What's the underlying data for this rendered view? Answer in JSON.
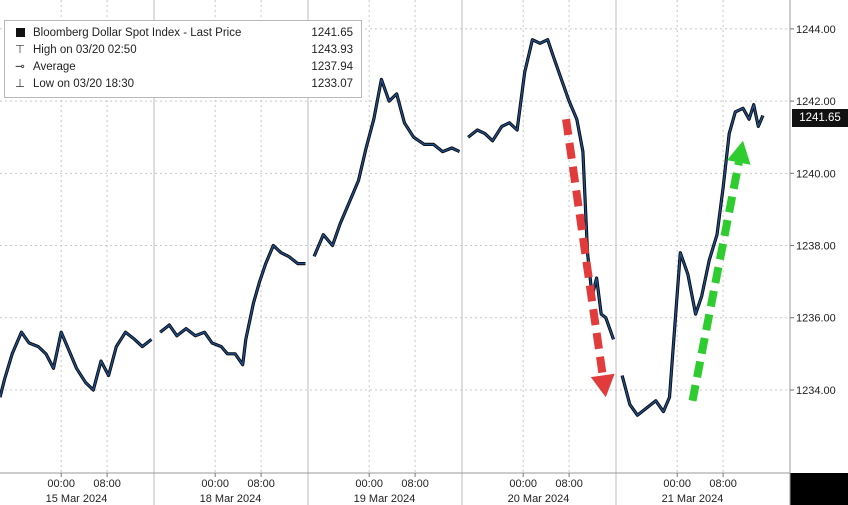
{
  "legend": {
    "title": "Bloomberg Dollar Spot Index - Last Price",
    "last_value": "1241.65",
    "high_label": "High on 03/20 02:50",
    "high_value": "1243.93",
    "avg_label": "Average",
    "avg_value": "1237.94",
    "low_label": "Low on 03/20 18:30",
    "low_value": "1233.07"
  },
  "last_price_badge": "1241.65",
  "colors": {
    "line": "#1f4e8c",
    "line_outline": "#0a0a0a",
    "panel_bg": "#ffffff",
    "red_arrow": "#e23b3b",
    "green_arrow": "#2ecc2e"
  },
  "chart_data": {
    "type": "line",
    "title": "Bloomberg Dollar Spot Index - Last Price",
    "ylim": [
      1231.7,
      1244.8
    ],
    "y_ticks": [
      "1244.00",
      "1242.00",
      "1240.00",
      "1238.00",
      "1236.00",
      "1234.00"
    ],
    "y_tick_values": [
      1244,
      1242,
      1240,
      1238,
      1236,
      1234
    ],
    "xlim": [
      0,
      5
    ],
    "day_labels": [
      "15 Mar 2024",
      "18 Mar 2024",
      "19 Mar 2024",
      "20 Mar 2024",
      "21 Mar 2024"
    ],
    "time_ticks": [
      {
        "x": 0.4,
        "label": "00:00"
      },
      {
        "x": 0.7,
        "label": "08:00"
      },
      {
        "x": 1.4,
        "label": "00:00"
      },
      {
        "x": 1.7,
        "label": "08:00"
      },
      {
        "x": 2.4,
        "label": "00:00"
      },
      {
        "x": 2.7,
        "label": "08:00"
      },
      {
        "x": 3.4,
        "label": "00:00"
      },
      {
        "x": 3.7,
        "label": "08:00"
      },
      {
        "x": 4.4,
        "label": "00:00"
      },
      {
        "x": 4.7,
        "label": "08:00"
      }
    ],
    "grid": true,
    "series": [
      {
        "values": [
          [
            0.0,
            1233.8
          ],
          [
            0.03,
            1234.3
          ],
          [
            0.08,
            1235.0
          ],
          [
            0.14,
            1235.6
          ],
          [
            0.19,
            1235.3
          ],
          [
            0.25,
            1235.2
          ],
          [
            0.3,
            1235.0
          ],
          [
            0.35,
            1234.6
          ],
          [
            0.4,
            1235.6
          ],
          [
            0.45,
            1235.1
          ],
          [
            0.5,
            1234.6
          ],
          [
            0.56,
            1234.2
          ],
          [
            0.61,
            1234.0
          ],
          [
            0.66,
            1234.8
          ],
          [
            0.71,
            1234.4
          ],
          [
            0.76,
            1235.2
          ],
          [
            0.82,
            1235.6
          ],
          [
            0.88,
            1235.4
          ],
          [
            0.93,
            1235.2
          ],
          [
            0.99,
            1235.4
          ],
          [
            1.04,
            1235.6
          ],
          [
            1.1,
            1235.8
          ],
          [
            1.15,
            1235.5
          ],
          [
            1.21,
            1235.7
          ],
          [
            1.27,
            1235.5
          ],
          [
            1.33,
            1235.6
          ],
          [
            1.38,
            1235.3
          ],
          [
            1.44,
            1235.2
          ],
          [
            1.48,
            1235.0
          ],
          [
            1.53,
            1235.0
          ],
          [
            1.58,
            1234.7
          ],
          [
            1.6,
            1235.4
          ],
          [
            1.65,
            1236.4
          ],
          [
            1.69,
            1237.0
          ],
          [
            1.73,
            1237.5
          ],
          [
            1.78,
            1238.0
          ],
          [
            1.83,
            1237.8
          ],
          [
            1.88,
            1237.7
          ],
          [
            1.94,
            1237.5
          ],
          [
            1.99,
            1237.5
          ],
          [
            2.04,
            1237.7
          ],
          [
            2.1,
            1238.3
          ],
          [
            2.16,
            1238.0
          ],
          [
            2.21,
            1238.6
          ],
          [
            2.27,
            1239.2
          ],
          [
            2.33,
            1239.8
          ],
          [
            2.38,
            1240.7
          ],
          [
            2.43,
            1241.5
          ],
          [
            2.48,
            1242.6
          ],
          [
            2.53,
            1242.0
          ],
          [
            2.58,
            1242.2
          ],
          [
            2.63,
            1241.4
          ],
          [
            2.69,
            1241.0
          ],
          [
            2.76,
            1240.8
          ],
          [
            2.82,
            1240.8
          ],
          [
            2.88,
            1240.6
          ],
          [
            2.94,
            1240.7
          ],
          [
            2.99,
            1240.6
          ],
          [
            3.04,
            1241.0
          ],
          [
            3.1,
            1241.2
          ],
          [
            3.15,
            1241.1
          ],
          [
            3.2,
            1240.9
          ],
          [
            3.26,
            1241.3
          ],
          [
            3.31,
            1241.4
          ],
          [
            3.36,
            1241.2
          ],
          [
            3.41,
            1242.8
          ],
          [
            3.46,
            1243.7
          ],
          [
            3.51,
            1243.6
          ],
          [
            3.56,
            1243.7
          ],
          [
            3.6,
            1243.2
          ],
          [
            3.65,
            1242.6
          ],
          [
            3.7,
            1242.0
          ],
          [
            3.75,
            1241.5
          ],
          [
            3.79,
            1240.6
          ],
          [
            3.82,
            1237.8
          ],
          [
            3.85,
            1236.6
          ],
          [
            3.88,
            1237.1
          ],
          [
            3.91,
            1236.1
          ],
          [
            3.94,
            1236.0
          ],
          [
            3.99,
            1235.4
          ],
          [
            4.04,
            1234.4
          ],
          [
            4.09,
            1233.6
          ],
          [
            4.14,
            1233.3
          ],
          [
            4.2,
            1233.5
          ],
          [
            4.26,
            1233.7
          ],
          [
            4.31,
            1233.4
          ],
          [
            4.35,
            1233.8
          ],
          [
            4.39,
            1236.1
          ],
          [
            4.42,
            1237.8
          ],
          [
            4.47,
            1237.2
          ],
          [
            4.52,
            1236.1
          ],
          [
            4.56,
            1236.6
          ],
          [
            4.61,
            1237.6
          ],
          [
            4.66,
            1238.3
          ],
          [
            4.7,
            1239.6
          ],
          [
            4.74,
            1241.1
          ],
          [
            4.78,
            1241.7
          ],
          [
            4.83,
            1241.8
          ],
          [
            4.87,
            1241.5
          ],
          [
            4.9,
            1241.9
          ],
          [
            4.93,
            1241.3
          ],
          [
            4.96,
            1241.6
          ]
        ]
      }
    ],
    "annotations": [
      {
        "type": "arrow",
        "color": "red",
        "from": [
          3.68,
          1241.5
        ],
        "to": [
          3.94,
          1233.8
        ]
      },
      {
        "type": "arrow",
        "color": "green",
        "from": [
          4.5,
          1233.7
        ],
        "to": [
          4.83,
          1240.9
        ]
      }
    ]
  }
}
